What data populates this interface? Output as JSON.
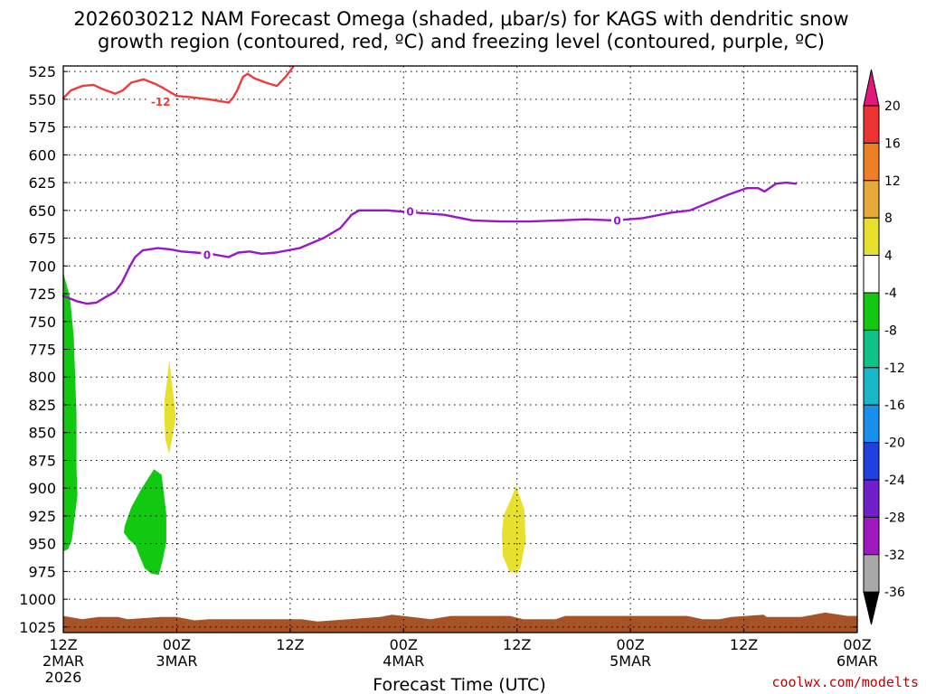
{
  "chart_data": {
    "type": "contour",
    "title_line1": "2026030212 NAM Forecast Omega (shaded, μbar/s) for KAGS with dendritic snow",
    "title_line2": "growth region (contoured, red, ºC) and freezing level (contoured, purple, ºC)",
    "xlabel": "Forecast Time (UTC)",
    "credit": "coolwx.com/modelts",
    "x_range_hours": [
      0,
      84
    ],
    "y_range_mb": [
      520,
      1030
    ],
    "y_ticks": [
      525,
      550,
      575,
      600,
      625,
      650,
      675,
      700,
      725,
      750,
      775,
      800,
      825,
      850,
      875,
      900,
      925,
      950,
      975,
      1000,
      1025
    ],
    "x_ticks": [
      {
        "hour": 0,
        "time": "12Z",
        "date": "2MAR",
        "year": "2026"
      },
      {
        "hour": 12,
        "time": "00Z",
        "date": "3MAR",
        "year": ""
      },
      {
        "hour": 24,
        "time": "12Z",
        "date": "",
        "year": ""
      },
      {
        "hour": 36,
        "time": "00Z",
        "date": "4MAR",
        "year": ""
      },
      {
        "hour": 48,
        "time": "12Z",
        "date": "",
        "year": ""
      },
      {
        "hour": 60,
        "time": "00Z",
        "date": "5MAR",
        "year": ""
      },
      {
        "hour": 72,
        "time": "12Z",
        "date": "",
        "year": ""
      },
      {
        "hour": 84,
        "time": "00Z",
        "date": "6MAR",
        "year": ""
      }
    ],
    "colorbar": {
      "labels": [
        "20",
        "16",
        "12",
        "8",
        "4",
        "-4",
        "-8",
        "-12",
        "-16",
        "-20",
        "-24",
        "-28",
        "-32",
        "-36"
      ],
      "bins": [
        {
          "value": 18,
          "color": "#ee3333"
        },
        {
          "value": 14,
          "color": "#ee7f22"
        },
        {
          "value": 10,
          "color": "#e8a83a"
        },
        {
          "value": 6,
          "color": "#e8e02e"
        },
        {
          "value": 0,
          "color": "#ffffff"
        },
        {
          "value": -6,
          "color": "#12c912"
        },
        {
          "value": -10,
          "color": "#0fc28a"
        },
        {
          "value": -14,
          "color": "#18b8c8"
        },
        {
          "value": -18,
          "color": "#1890ee"
        },
        {
          "value": -22,
          "color": "#2040e0"
        },
        {
          "value": -26,
          "color": "#7020c8"
        },
        {
          "value": -30,
          "color": "#a018c0"
        },
        {
          "value": -34,
          "color": "#a8a8a8"
        }
      ],
      "top_arrow_color": "#e0187a",
      "bottom_arrow_color": "#000000"
    },
    "series": [
      {
        "name": "dendritic growth region (-12 ºC)",
        "color": "#ee3b3b",
        "label": "-12",
        "label_at": [
          10.3,
          552
        ],
        "points": [
          [
            0,
            549
          ],
          [
            0.8,
            542
          ],
          [
            2,
            538
          ],
          [
            3.2,
            537
          ],
          [
            4.2,
            541
          ],
          [
            5.5,
            545
          ],
          [
            6.3,
            542
          ],
          [
            7.2,
            535
          ],
          [
            8.5,
            532
          ],
          [
            9.7,
            536
          ],
          [
            10.6,
            540
          ],
          [
            12,
            547
          ],
          [
            13.4,
            548
          ],
          [
            15.4,
            550
          ],
          [
            16.8,
            552
          ],
          [
            17.5,
            553
          ],
          [
            18,
            548
          ],
          [
            18.4,
            542
          ],
          [
            19,
            530
          ],
          [
            19.5,
            527
          ],
          [
            20.2,
            531
          ],
          [
            21.4,
            535
          ],
          [
            22.6,
            538
          ],
          [
            23.5,
            530
          ],
          [
            24.3,
            521
          ]
        ]
      },
      {
        "name": "freezing level (0 ºC)",
        "color": "#9618c8",
        "label": "0",
        "label_at": [
          15.2,
          690
        ],
        "label2_at": [
          36.7,
          651
        ],
        "label3_at": [
          58.6,
          659
        ],
        "points": [
          [
            0,
            727
          ],
          [
            1.5,
            732
          ],
          [
            2.5,
            734
          ],
          [
            3.5,
            733
          ],
          [
            4.3,
            729
          ],
          [
            5.5,
            723
          ],
          [
            6.2,
            715
          ],
          [
            7,
            701
          ],
          [
            7.6,
            692
          ],
          [
            8.4,
            686
          ],
          [
            10,
            684
          ],
          [
            11.3,
            685
          ],
          [
            12.5,
            687
          ],
          [
            14,
            688
          ],
          [
            15.5,
            689
          ],
          [
            17.5,
            692
          ],
          [
            18.5,
            688
          ],
          [
            19.7,
            687
          ],
          [
            21,
            689
          ],
          [
            22.5,
            688
          ],
          [
            25,
            684
          ],
          [
            27.5,
            675
          ],
          [
            29.3,
            666
          ],
          [
            30.5,
            654
          ],
          [
            31.3,
            650
          ],
          [
            34.3,
            650
          ],
          [
            37.3,
            652
          ],
          [
            40.3,
            654
          ],
          [
            43.3,
            659
          ],
          [
            46.3,
            660
          ],
          [
            49.3,
            660
          ],
          [
            52.3,
            659
          ],
          [
            55.3,
            658
          ],
          [
            58.3,
            659
          ],
          [
            61.3,
            657
          ],
          [
            64.3,
            652
          ],
          [
            66.3,
            650
          ],
          [
            68.3,
            643
          ],
          [
            70.3,
            636
          ],
          [
            72.3,
            630
          ],
          [
            73.5,
            630
          ],
          [
            74.2,
            633
          ],
          [
            75.4,
            626
          ],
          [
            76.5,
            625
          ],
          [
            77.5,
            626
          ]
        ]
      }
    ],
    "shaded_regions": [
      {
        "value": -6,
        "color": "#12c912",
        "points": [
          [
            0,
            706
          ],
          [
            0.7,
            728
          ],
          [
            1.1,
            763
          ],
          [
            1.4,
            833
          ],
          [
            1.4,
            883
          ],
          [
            1.5,
            906
          ],
          [
            1.2,
            927
          ],
          [
            0.9,
            947
          ],
          [
            0.5,
            955
          ],
          [
            0,
            957
          ]
        ]
      },
      {
        "value": -6,
        "color": "#12c912",
        "points": [
          [
            6.5,
            934
          ],
          [
            7.2,
            917
          ],
          [
            8.3,
            900
          ],
          [
            9.6,
            883
          ],
          [
            10.4,
            888
          ],
          [
            10.9,
            923
          ],
          [
            10.9,
            949
          ],
          [
            10.5,
            965
          ],
          [
            10.1,
            978
          ],
          [
            9.3,
            977
          ],
          [
            8.6,
            972
          ],
          [
            8.1,
            962
          ],
          [
            7.6,
            951
          ],
          [
            6.9,
            946
          ],
          [
            6.4,
            940
          ]
        ]
      },
      {
        "value": 6,
        "color": "#e8e02e",
        "points": [
          [
            10.7,
            821
          ],
          [
            11.0,
            802
          ],
          [
            11.2,
            785
          ],
          [
            11.6,
            812
          ],
          [
            11.9,
            836
          ],
          [
            11.5,
            856
          ],
          [
            11.2,
            869
          ],
          [
            10.8,
            856
          ],
          [
            10.7,
            839
          ]
        ]
      },
      {
        "value": 6,
        "color": "#e8e02e",
        "points": [
          [
            46.4,
            941
          ],
          [
            46.6,
            924
          ],
          [
            47.3,
            911
          ],
          [
            47.9,
            898
          ],
          [
            48.8,
            920
          ],
          [
            48.9,
            948
          ],
          [
            48.4,
            970
          ],
          [
            48.0,
            977
          ],
          [
            47.2,
            975
          ],
          [
            46.5,
            961
          ]
        ]
      }
    ],
    "terrain": {
      "color": "#a85228",
      "top_mb": [
        [
          0,
          1015
        ],
        [
          2,
          1018
        ],
        [
          3.7,
          1016
        ],
        [
          5.8,
          1016
        ],
        [
          6.8,
          1018
        ],
        [
          10.3,
          1016
        ],
        [
          12,
          1016
        ],
        [
          13.9,
          1019
        ],
        [
          15.4,
          1018
        ],
        [
          25.2,
          1018
        ],
        [
          26.9,
          1020
        ],
        [
          33.5,
          1016
        ],
        [
          34.8,
          1014
        ],
        [
          38.9,
          1018
        ],
        [
          41,
          1015
        ],
        [
          47.2,
          1015
        ],
        [
          48.7,
          1018
        ],
        [
          52.1,
          1018
        ],
        [
          53.1,
          1015
        ],
        [
          59,
          1015
        ],
        [
          66,
          1015
        ],
        [
          67.6,
          1018
        ],
        [
          69.4,
          1018
        ],
        [
          70.7,
          1016
        ],
        [
          74.1,
          1014
        ],
        [
          74.4,
          1016
        ],
        [
          78.1,
          1016
        ],
        [
          80.6,
          1012
        ],
        [
          83,
          1015
        ],
        [
          84,
          1015
        ]
      ]
    }
  }
}
